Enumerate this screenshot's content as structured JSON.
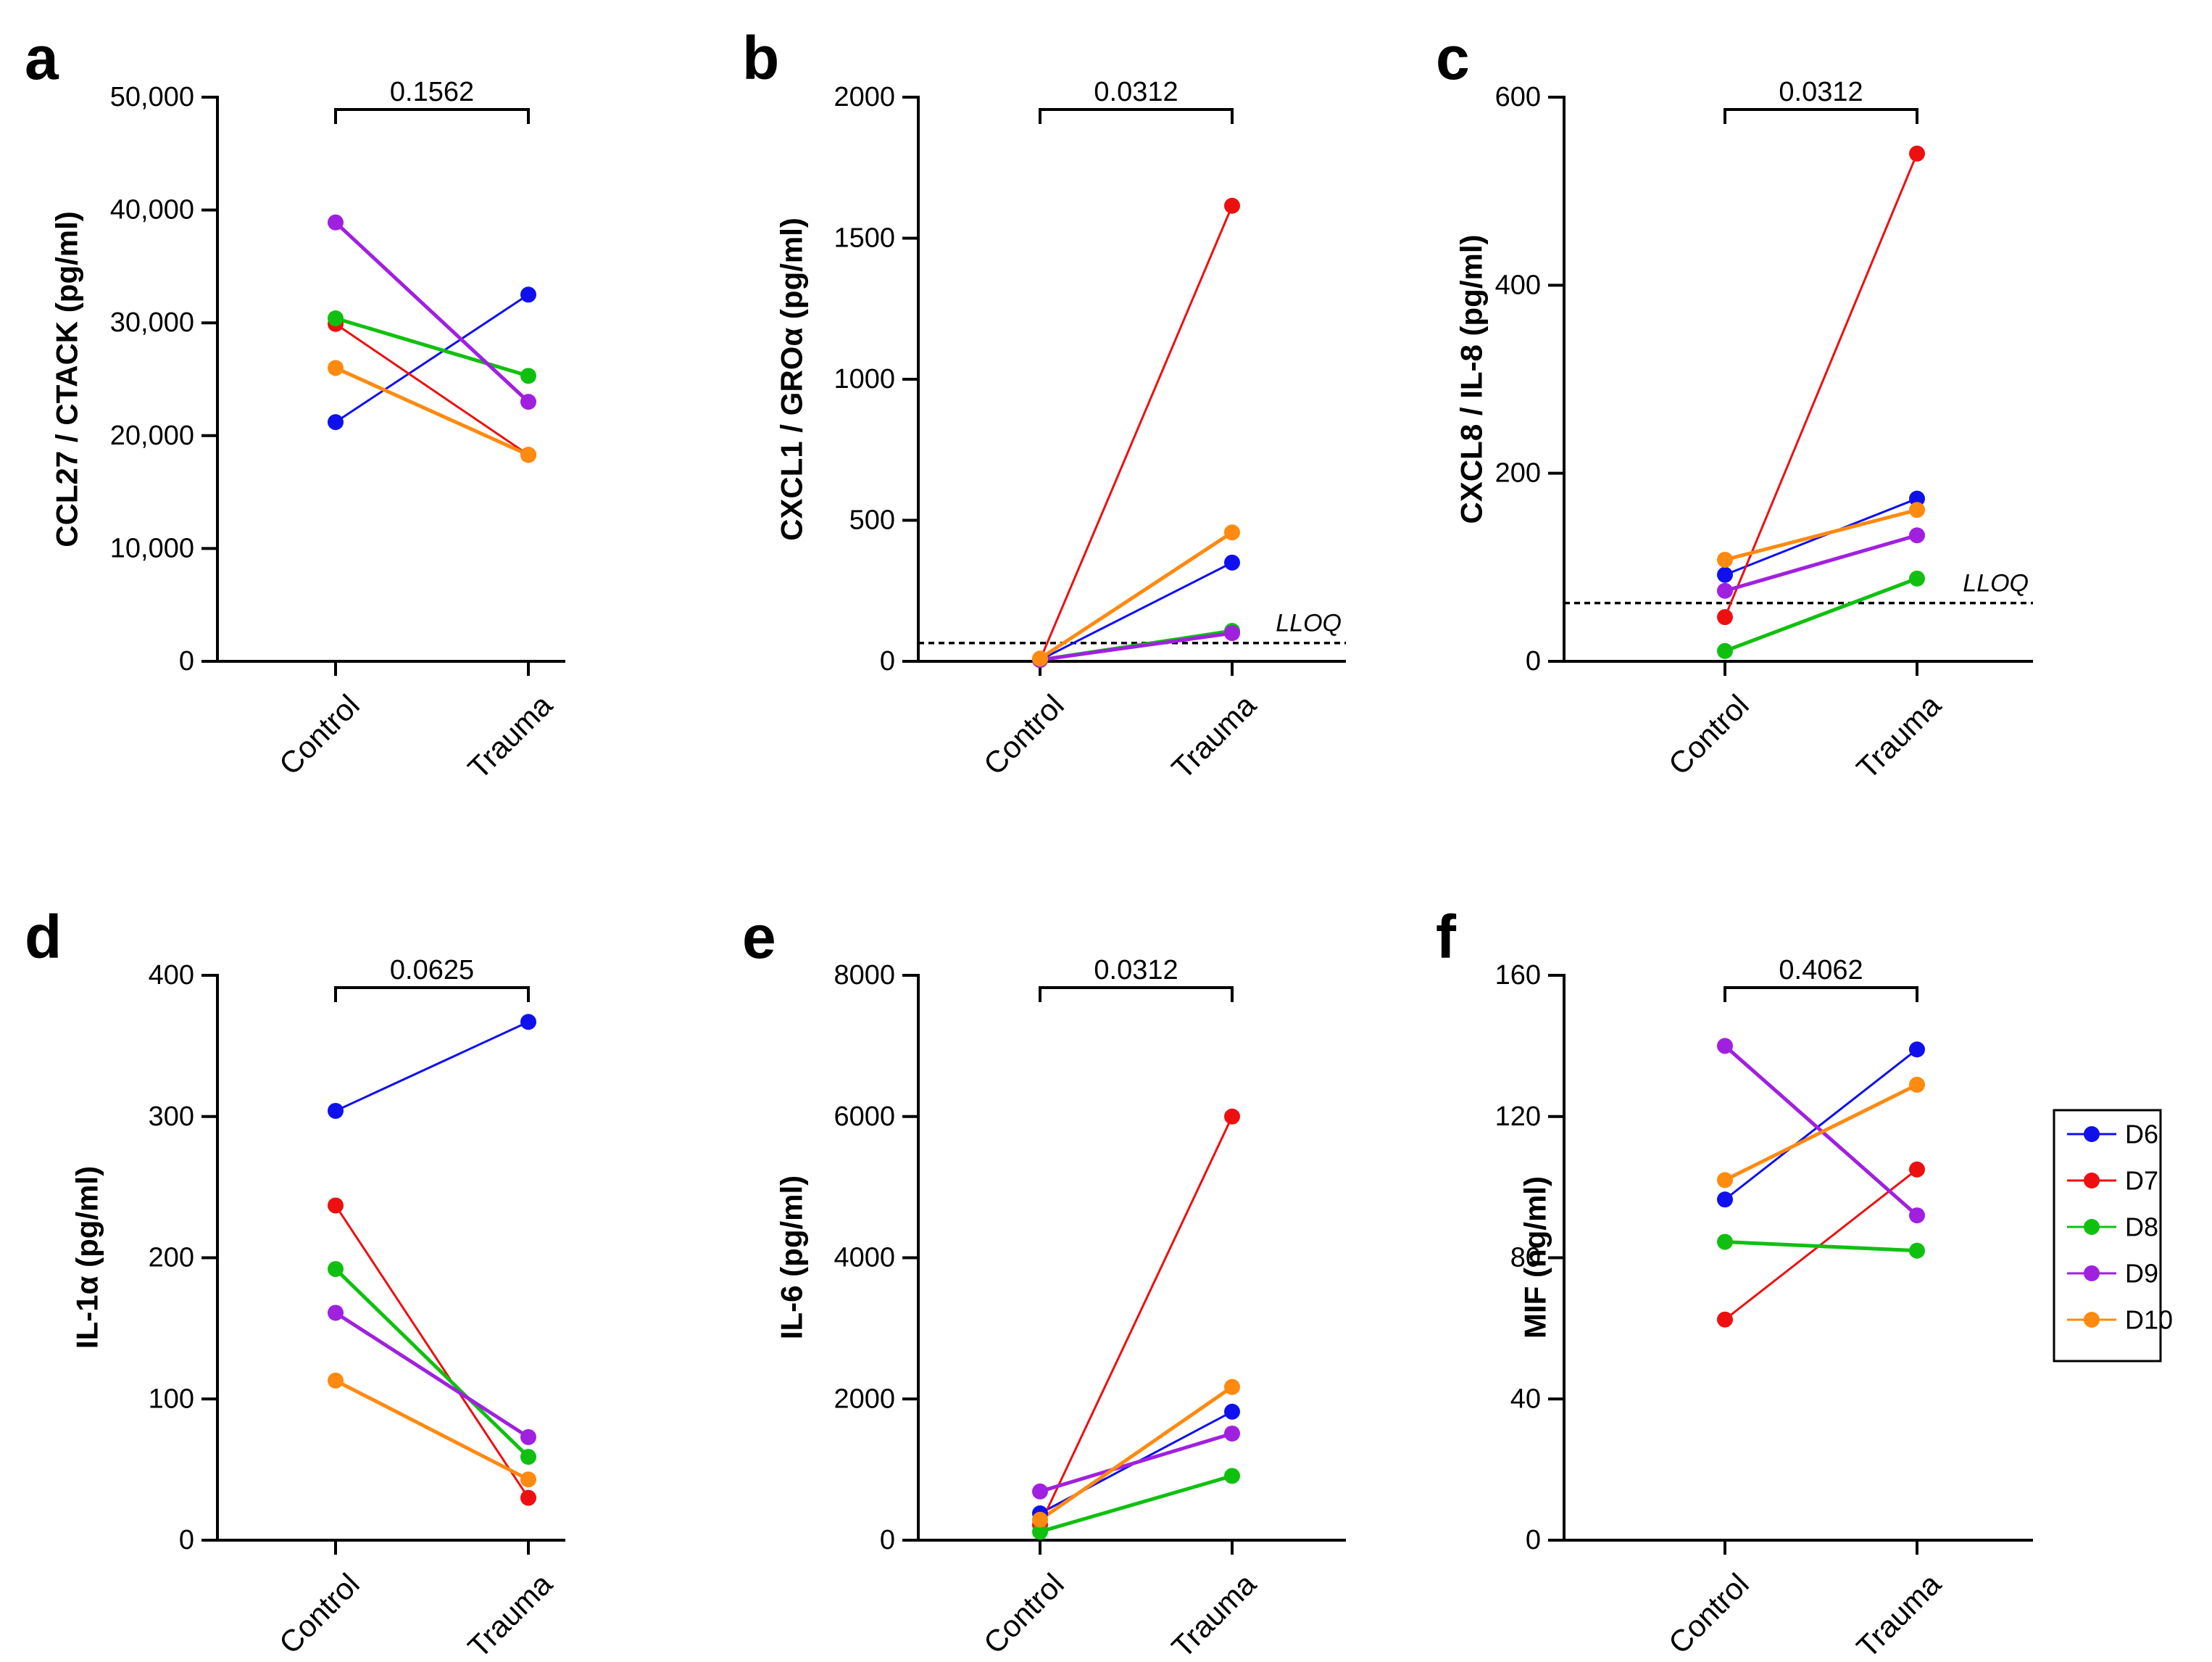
{
  "figure": {
    "x_categories": [
      "Control",
      "Trauma"
    ],
    "legend": {
      "entries": [
        {
          "name": "D6",
          "color": "#1010ee"
        },
        {
          "name": "D7",
          "color": "#ee1010"
        },
        {
          "name": "D8",
          "color": "#10c010"
        },
        {
          "name": "D9",
          "color": "#a020e0"
        },
        {
          "name": "D10",
          "color": "#ff8a10"
        }
      ]
    }
  },
  "chart_data": [
    {
      "panel": "a",
      "type": "line",
      "ylabel": "CCL27 / CTACK (pg/ml)",
      "categories": [
        "Control",
        "Trauma"
      ],
      "ylim": [
        0,
        50000
      ],
      "yticks": [
        0,
        10000,
        20000,
        30000,
        40000,
        50000
      ],
      "ytick_labels": [
        "0",
        "10,000",
        "20,000",
        "30,000",
        "40,000",
        "50,000"
      ],
      "p_value": "0.1562",
      "series": [
        {
          "name": "D6",
          "values": [
            21200,
            32500
          ]
        },
        {
          "name": "D7",
          "values": [
            29900,
            18300
          ]
        },
        {
          "name": "D8",
          "values": [
            30400,
            25300
          ]
        },
        {
          "name": "D9",
          "values": [
            38900,
            23000
          ]
        },
        {
          "name": "D10",
          "values": [
            26000,
            18300
          ]
        }
      ]
    },
    {
      "panel": "b",
      "type": "line",
      "ylabel": "CXCL1 / GROα (pg/ml)",
      "categories": [
        "Control",
        "Trauma"
      ],
      "ylim": [
        0,
        2000
      ],
      "yticks": [
        0,
        500,
        1000,
        1500,
        2000
      ],
      "ytick_labels": [
        "0",
        "500",
        "1000",
        "1500",
        "2000"
      ],
      "p_value": "0.0312",
      "lloq": {
        "value": 65,
        "label": "LLOQ"
      },
      "series": [
        {
          "name": "D6",
          "values": [
            5,
            350
          ]
        },
        {
          "name": "D7",
          "values": [
            5,
            1615
          ]
        },
        {
          "name": "D8",
          "values": [
            5,
            108
          ]
        },
        {
          "name": "D9",
          "values": [
            5,
            100
          ]
        },
        {
          "name": "D10",
          "values": [
            10,
            457
          ]
        }
      ]
    },
    {
      "panel": "c",
      "type": "line",
      "ylabel": "CXCL8 / IL-8 (pg/ml)",
      "categories": [
        "Control",
        "Trauma"
      ],
      "ylim": [
        0,
        600
      ],
      "yticks": [
        0,
        200,
        400,
        600
      ],
      "ytick_labels": [
        "0",
        "200",
        "400",
        "600"
      ],
      "p_value": "0.0312",
      "lloq": {
        "value": 62,
        "label": "LLOQ"
      },
      "series": [
        {
          "name": "D6",
          "values": [
            92,
            173
          ]
        },
        {
          "name": "D7",
          "values": [
            47,
            540
          ]
        },
        {
          "name": "D8",
          "values": [
            11,
            88
          ]
        },
        {
          "name": "D9",
          "values": [
            75,
            134
          ]
        },
        {
          "name": "D10",
          "values": [
            108,
            161
          ]
        }
      ]
    },
    {
      "panel": "d",
      "type": "line",
      "ylabel": "IL-1α (pg/ml)",
      "categories": [
        "Control",
        "Trauma"
      ],
      "ylim": [
        0,
        400
      ],
      "yticks": [
        0,
        100,
        200,
        300,
        400
      ],
      "ytick_labels": [
        "0",
        "100",
        "200",
        "300",
        "400"
      ],
      "p_value": "0.0625",
      "series": [
        {
          "name": "D6",
          "values": [
            304,
            367
          ]
        },
        {
          "name": "D7",
          "values": [
            237,
            30
          ]
        },
        {
          "name": "D8",
          "values": [
            192,
            59
          ]
        },
        {
          "name": "D9",
          "values": [
            161,
            73
          ]
        },
        {
          "name": "D10",
          "values": [
            113,
            43
          ]
        }
      ]
    },
    {
      "panel": "e",
      "type": "line",
      "ylabel": "IL-6 (pg/ml)",
      "categories": [
        "Control",
        "Trauma"
      ],
      "ylim": [
        0,
        8000
      ],
      "yticks": [
        0,
        2000,
        4000,
        6000,
        8000
      ],
      "ytick_labels": [
        "0",
        "2000",
        "4000",
        "6000",
        "8000"
      ],
      "p_value": "0.0312",
      "series": [
        {
          "name": "D6",
          "values": [
            380,
            1820
          ]
        },
        {
          "name": "D7",
          "values": [
            220,
            6000
          ]
        },
        {
          "name": "D8",
          "values": [
            120,
            910
          ]
        },
        {
          "name": "D9",
          "values": [
            690,
            1510
          ]
        },
        {
          "name": "D10",
          "values": [
            290,
            2170
          ]
        }
      ]
    },
    {
      "panel": "f",
      "type": "line",
      "ylabel": "MIF (ng/ml)",
      "categories": [
        "Control",
        "Trauma"
      ],
      "ylim": [
        0,
        160
      ],
      "yticks": [
        0,
        40,
        80,
        120,
        160
      ],
      "ytick_labels": [
        "0",
        "40",
        "80",
        "120",
        "160"
      ],
      "p_value": "0.4062",
      "series": [
        {
          "name": "D6",
          "values": [
            96.5,
            139
          ]
        },
        {
          "name": "D7",
          "values": [
            62.5,
            105
          ]
        },
        {
          "name": "D8",
          "values": [
            84.5,
            82
          ]
        },
        {
          "name": "D9",
          "values": [
            140,
            92
          ]
        },
        {
          "name": "D10",
          "values": [
            102,
            129
          ]
        }
      ]
    }
  ]
}
